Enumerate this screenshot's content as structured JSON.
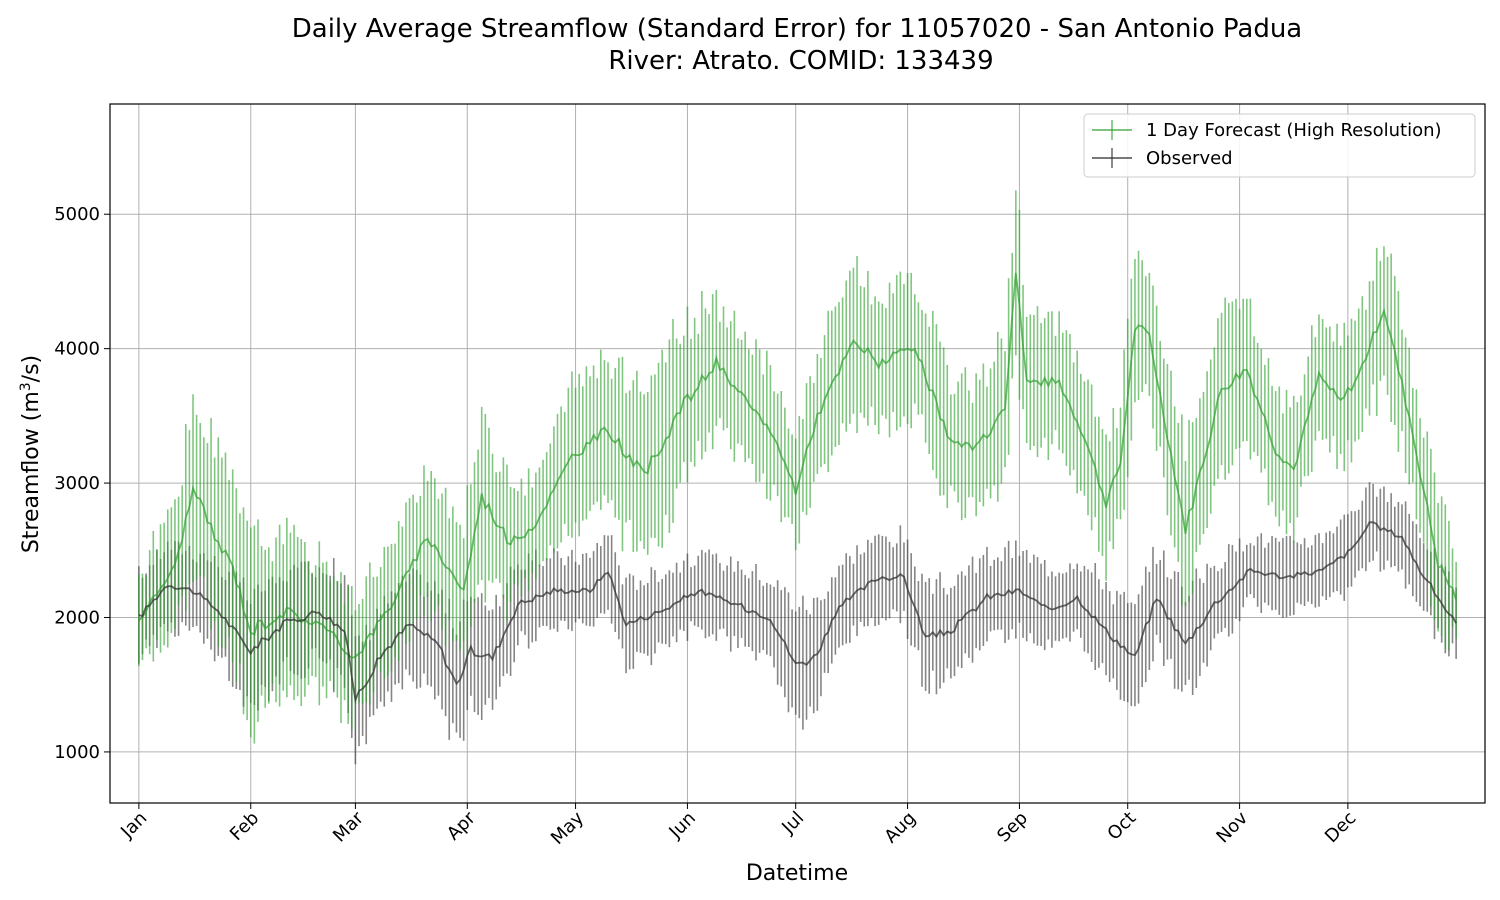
{
  "chart_data": {
    "type": "line",
    "title_line1": "Daily Average Streamflow (Standard Error) for 11057020 - San Antonio Padua",
    "title_line2": "River: Atrato. COMID: 133439",
    "xlabel": "Datetime",
    "ylabel_main": "Streamflow (m",
    "ylabel_sup": "3",
    "ylabel_end": "/s)",
    "xlim": [
      -8,
      373
    ],
    "ylim": [
      620,
      5820
    ],
    "yticks": [
      1000,
      2000,
      3000,
      4000,
      5000
    ],
    "months": [
      {
        "label": "Jan",
        "day": 0
      },
      {
        "label": "Feb",
        "day": 31
      },
      {
        "label": "Mar",
        "day": 60
      },
      {
        "label": "Apr",
        "day": 91
      },
      {
        "label": "May",
        "day": 121
      },
      {
        "label": "Jun",
        "day": 152
      },
      {
        "label": "Jul",
        "day": 182
      },
      {
        "label": "Aug",
        "day": 213
      },
      {
        "label": "Sep",
        "day": 244
      },
      {
        "label": "Oct",
        "day": 274
      },
      {
        "label": "Nov",
        "day": 305
      },
      {
        "label": "Dec",
        "day": 335
      }
    ],
    "grid": true,
    "legend_position": "top-right",
    "series": [
      {
        "name": "1 Day Forecast (High Resolution)",
        "color": "#2ca02c",
        "points": [
          [
            0,
            1980,
            320
          ],
          [
            10,
            2380,
            500
          ],
          [
            15,
            2950,
            600
          ],
          [
            22,
            2550,
            650
          ],
          [
            26,
            2380,
            600
          ],
          [
            31,
            1900,
            700
          ],
          [
            40,
            2050,
            550
          ],
          [
            50,
            1950,
            500
          ],
          [
            60,
            1700,
            450
          ],
          [
            70,
            2100,
            450
          ],
          [
            80,
            2600,
            450
          ],
          [
            90,
            2200,
            500
          ],
          [
            95,
            2900,
            600
          ],
          [
            103,
            2550,
            450
          ],
          [
            110,
            2700,
            350
          ],
          [
            120,
            3200,
            500
          ],
          [
            130,
            3400,
            550
          ],
          [
            140,
            3050,
            650
          ],
          [
            150,
            3550,
            600
          ],
          [
            160,
            3900,
            450
          ],
          [
            165,
            3700,
            450
          ],
          [
            175,
            3400,
            450
          ],
          [
            182,
            2950,
            400
          ],
          [
            188,
            3500,
            450
          ],
          [
            198,
            4050,
            600
          ],
          [
            205,
            3900,
            450
          ],
          [
            215,
            4000,
            500
          ],
          [
            225,
            3300,
            450
          ],
          [
            232,
            3250,
            450
          ],
          [
            240,
            3550,
            550
          ],
          [
            243,
            4600,
            650
          ],
          [
            246,
            3750,
            450
          ],
          [
            255,
            3750,
            450
          ],
          [
            262,
            3350,
            450
          ],
          [
            268,
            2850,
            450
          ],
          [
            272,
            3150,
            450
          ],
          [
            276,
            4150,
            600
          ],
          [
            280,
            4100,
            450
          ],
          [
            284,
            3500,
            450
          ],
          [
            290,
            2650,
            600
          ],
          [
            300,
            3700,
            550
          ],
          [
            307,
            3850,
            500
          ],
          [
            315,
            3250,
            450
          ],
          [
            320,
            3100,
            450
          ],
          [
            327,
            3800,
            450
          ],
          [
            333,
            3600,
            450
          ],
          [
            338,
            3800,
            450
          ],
          [
            345,
            4300,
            550
          ],
          [
            352,
            3500,
            450
          ],
          [
            360,
            2400,
            550
          ],
          [
            365,
            2150,
            350
          ]
        ]
      },
      {
        "name": "Observed",
        "color": "#333333",
        "points": [
          [
            0,
            2000,
            300
          ],
          [
            8,
            2250,
            300
          ],
          [
            15,
            2200,
            300
          ],
          [
            22,
            2050,
            350
          ],
          [
            31,
            1750,
            400
          ],
          [
            40,
            1950,
            350
          ],
          [
            50,
            2050,
            350
          ],
          [
            57,
            1900,
            450
          ],
          [
            60,
            1400,
            400
          ],
          [
            68,
            1750,
            350
          ],
          [
            75,
            1950,
            350
          ],
          [
            83,
            1800,
            400
          ],
          [
            88,
            1500,
            450
          ],
          [
            92,
            1750,
            400
          ],
          [
            98,
            1700,
            400
          ],
          [
            105,
            2100,
            300
          ],
          [
            115,
            2200,
            250
          ],
          [
            125,
            2200,
            250
          ],
          [
            130,
            2350,
            300
          ],
          [
            135,
            1950,
            300
          ],
          [
            145,
            2050,
            300
          ],
          [
            155,
            2200,
            250
          ],
          [
            165,
            2100,
            300
          ],
          [
            175,
            2000,
            300
          ],
          [
            182,
            1650,
            450
          ],
          [
            187,
            1700,
            400
          ],
          [
            195,
            2100,
            300
          ],
          [
            205,
            2300,
            300
          ],
          [
            212,
            2300,
            300
          ],
          [
            218,
            1850,
            350
          ],
          [
            225,
            1900,
            350
          ],
          [
            235,
            2150,
            300
          ],
          [
            244,
            2200,
            300
          ],
          [
            252,
            2050,
            300
          ],
          [
            260,
            2150,
            300
          ],
          [
            268,
            1900,
            350
          ],
          [
            276,
            1700,
            350
          ],
          [
            282,
            2150,
            350
          ],
          [
            290,
            1800,
            400
          ],
          [
            298,
            2100,
            300
          ],
          [
            308,
            2350,
            250
          ],
          [
            318,
            2300,
            250
          ],
          [
            328,
            2350,
            250
          ],
          [
            336,
            2500,
            300
          ],
          [
            341,
            2700,
            250
          ],
          [
            350,
            2600,
            250
          ],
          [
            355,
            2350,
            300
          ],
          [
            365,
            1950,
            250
          ]
        ]
      }
    ]
  }
}
